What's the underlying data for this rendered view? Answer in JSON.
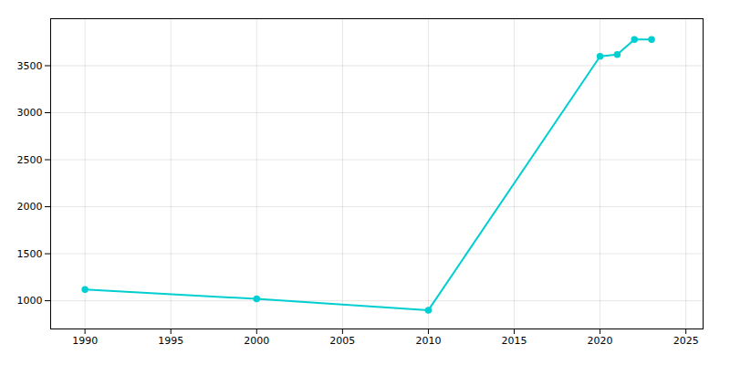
{
  "chart_data": {
    "type": "line",
    "x": [
      1990,
      2000,
      2010,
      2020,
      2021,
      2022,
      2023
    ],
    "values": [
      1120,
      1020,
      900,
      3600,
      3620,
      3780,
      3780
    ],
    "color": "#00CED1",
    "marker": "circle",
    "xlim": [
      1988,
      2026
    ],
    "ylim": [
      700,
      4000
    ],
    "xticks": [
      1990,
      1995,
      2000,
      2005,
      2010,
      2015,
      2020,
      2025
    ],
    "yticks": [
      1000,
      1500,
      2000,
      2500,
      3000,
      3500
    ],
    "grid": true
  }
}
